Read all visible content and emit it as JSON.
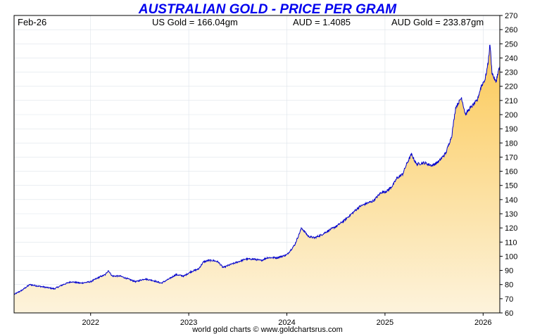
{
  "header": {
    "date_label": "Feb-26",
    "us_gold": "US Gold = 166.04gm",
    "aud_rate": "AUD = 1.4085",
    "aud_gold": "AUD Gold = 233.87gm"
  },
  "footer": "world gold charts © www.goldchartsrus.com",
  "colors": {
    "title": "#0000ee",
    "line": "#0000cc",
    "fill_top": "#fbc957",
    "fill_bottom": "#fdf3dc",
    "grid": "#dde3ea"
  },
  "chart_data": {
    "type": "area",
    "title": "AUSTRALIAN GOLD - PRICE PER GRAM",
    "xlabel": "",
    "ylabel": "",
    "x_ticks": [
      "2022",
      "2023",
      "2024",
      "2025",
      "2026"
    ],
    "y_ticks": [
      60,
      70,
      80,
      90,
      100,
      110,
      120,
      130,
      140,
      150,
      160,
      170,
      180,
      190,
      200,
      210,
      220,
      230,
      240,
      250,
      260,
      270
    ],
    "xlim": [
      2021.22,
      2026.17
    ],
    "ylim": [
      60,
      270
    ],
    "grid": true,
    "series": [
      {
        "name": "",
        "x": [
          2021.22,
          2021.3,
          2021.38,
          2021.46,
          2021.55,
          2021.63,
          2021.72,
          2021.8,
          2021.9,
          2022.0,
          2022.08,
          2022.15,
          2022.18,
          2022.22,
          2022.3,
          2022.38,
          2022.46,
          2022.55,
          2022.63,
          2022.72,
          2022.8,
          2022.87,
          2022.95,
          2023.02,
          2023.1,
          2023.15,
          2023.2,
          2023.25,
          2023.3,
          2023.35,
          2023.42,
          2023.5,
          2023.58,
          2023.66,
          2023.74,
          2023.8,
          2023.9,
          2024.0,
          2024.08,
          2024.15,
          2024.22,
          2024.28,
          2024.35,
          2024.42,
          2024.5,
          2024.58,
          2024.66,
          2024.74,
          2024.8,
          2024.88,
          2024.96,
          2025.02,
          2025.08,
          2025.12,
          2025.18,
          2025.22,
          2025.27,
          2025.32,
          2025.4,
          2025.48,
          2025.55,
          2025.62,
          2025.68,
          2025.72,
          2025.78,
          2025.82,
          2025.86,
          2025.9,
          2025.94,
          2025.98,
          2026.02,
          2026.05,
          2026.07,
          2026.09,
          2026.11,
          2026.13,
          2026.15,
          2026.17
        ],
        "values": [
          73,
          76,
          80,
          79,
          78,
          77,
          80,
          82,
          81,
          82,
          85,
          87,
          90,
          86,
          86,
          84,
          82,
          84,
          83,
          81,
          84,
          87,
          86,
          89,
          91,
          96,
          97,
          97,
          96,
          92,
          94,
          96,
          98,
          98,
          97,
          99,
          99,
          101,
          108,
          120,
          114,
          113,
          115,
          118,
          121,
          125,
          130,
          135,
          137,
          139,
          145,
          146,
          150,
          155,
          158,
          165,
          172,
          165,
          166,
          164,
          167,
          173,
          185,
          205,
          212,
          200,
          204,
          207,
          210,
          220,
          225,
          236,
          250,
          230,
          226,
          223,
          229,
          234
        ]
      }
    ]
  }
}
